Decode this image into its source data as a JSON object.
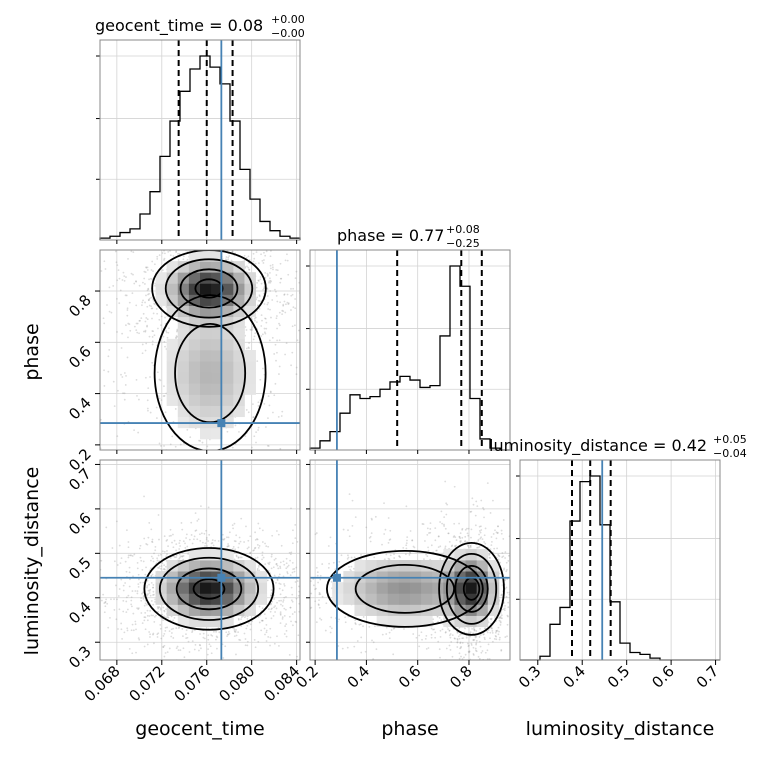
{
  "chart_data": {
    "type": "corner",
    "parameters": [
      "geocent_time",
      "phase",
      "luminosity_distance"
    ],
    "truth": {
      "geocent_time": 0.0773,
      "phase": 0.285,
      "luminosity_distance": 0.445
    },
    "truth_color": "#4682b4",
    "grid": true,
    "axes": {
      "geocent_time": {
        "range": [
          0.0665,
          0.0843
        ],
        "ticks": [
          0.068,
          0.072,
          0.076,
          0.08,
          0.084
        ],
        "tick_labels": [
          "0.068",
          "0.072",
          "0.076",
          "0.080",
          "0.084"
        ],
        "label": "geocent_time"
      },
      "phase": {
        "range": [
          0.18,
          0.96
        ],
        "ticks": [
          0.2,
          0.4,
          0.6,
          0.8
        ],
        "tick_labels": [
          "0.2",
          "0.4",
          "0.6",
          "0.8"
        ],
        "label": "phase"
      },
      "luminosity_distance": {
        "range": [
          0.26,
          0.71
        ],
        "ticks": [
          0.3,
          0.4,
          0.5,
          0.6,
          0.7
        ],
        "tick_labels": [
          "0.3",
          "0.4",
          "0.5",
          "0.6",
          "0.7"
        ],
        "label": "luminosity_distance"
      }
    },
    "titles": {
      "geocent_time": {
        "text": "geocent_time = 0.08",
        "plus": "+0.00",
        "minus": "−0.00"
      },
      "phase": {
        "text": "phase = 0.77",
        "plus": "+0.08",
        "minus": "−0.25"
      },
      "luminosity_distance": {
        "text": "luminosity_distance = 0.42",
        "plus": "+0.05",
        "minus": "−0.04"
      }
    },
    "histograms": {
      "geocent_time": {
        "edges_start": 0.0665,
        "bin_width": 0.00089,
        "counts": [
          0.01,
          0.02,
          0.04,
          0.06,
          0.14,
          0.26,
          0.45,
          0.64,
          0.8,
          0.92,
          0.99,
          0.93,
          0.84,
          0.64,
          0.38,
          0.22,
          0.1,
          0.05,
          0.02,
          0.01
        ],
        "quantiles": [
          0.0735,
          0.076,
          0.0783
        ]
      },
      "phase": {
        "edges_start": 0.18,
        "bin_width": 0.039,
        "counts": [
          0.01,
          0.05,
          0.1,
          0.2,
          0.3,
          0.28,
          0.29,
          0.33,
          0.37,
          0.4,
          0.38,
          0.34,
          0.35,
          0.62,
          1.0,
          0.89,
          0.28,
          0.06,
          0.01,
          0.0
        ],
        "quantiles": [
          0.52,
          0.77,
          0.85
        ]
      },
      "luminosity_distance": {
        "edges_start": 0.26,
        "bin_width": 0.0225,
        "counts": [
          0.0,
          0.0,
          0.02,
          0.19,
          0.28,
          0.74,
          0.95,
          0.98,
          0.72,
          0.31,
          0.09,
          0.04,
          0.03,
          0.01,
          0.0,
          0.0,
          0.0,
          0.0,
          0.0,
          0.0
        ],
        "quantiles": [
          0.377,
          0.418,
          0.464
        ]
      }
    },
    "posterior_modes": {
      "geocent_time_vs_phase": [
        {
          "x": 0.0762,
          "y": 0.81,
          "sx": 0.0022,
          "sy": 0.065,
          "w": 0.72
        },
        {
          "x": 0.0763,
          "y": 0.48,
          "sx": 0.0026,
          "sy": 0.16,
          "w": 0.28
        }
      ],
      "geocent_time_vs_luminosity_distance": [
        {
          "x": 0.0762,
          "y": 0.42,
          "sx": 0.0025,
          "sy": 0.04,
          "w": 1.0
        }
      ],
      "phase_vs_luminosity_distance": [
        {
          "x": 0.81,
          "y": 0.42,
          "sx": 0.055,
          "sy": 0.045,
          "w": 0.62
        },
        {
          "x": 0.55,
          "y": 0.42,
          "sx": 0.16,
          "sy": 0.045,
          "w": 0.38
        }
      ]
    }
  }
}
